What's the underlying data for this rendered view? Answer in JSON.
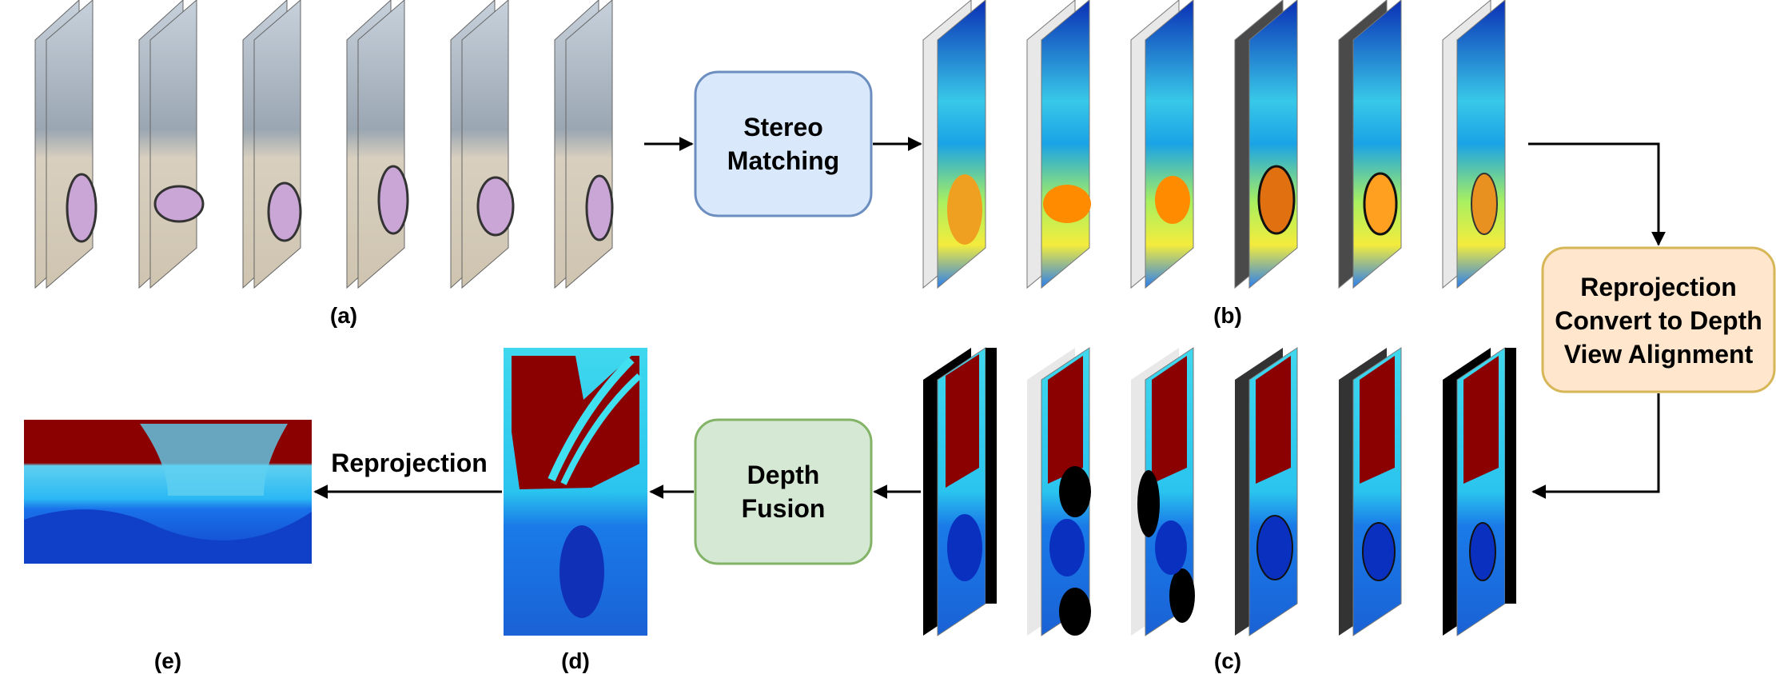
{
  "nodes": {
    "stereo_matching": {
      "lines": [
        "Stereo",
        "Matching"
      ],
      "fill": "#dae8fc",
      "stroke": "#6c8ebf"
    },
    "reprojection_box": {
      "lines": [
        "Reprojection",
        "Convert to Depth",
        "View Alignment"
      ],
      "fill": "#ffe6cc",
      "stroke": "#d6b656"
    },
    "depth_fusion": {
      "lines": [
        "Depth",
        "Fusion"
      ],
      "fill": "#d5e8d4",
      "stroke": "#82b366"
    }
  },
  "panels": {
    "a": "(a)",
    "b": "(b)",
    "c": "(c)",
    "d": "(d)",
    "e": "(e)"
  },
  "edges": {
    "d_to_e": "Reprojection"
  },
  "colors": {
    "depth_red": "#8b0000",
    "depth_cyan": "#40e0f0",
    "depth_blue": "#0a40d8",
    "depth_yellow": "#ffee40",
    "depth_orange": "#ff8c00",
    "sky": "#c9d3e0",
    "ground": "#d8cfbf",
    "car": "#c9a6d6"
  }
}
